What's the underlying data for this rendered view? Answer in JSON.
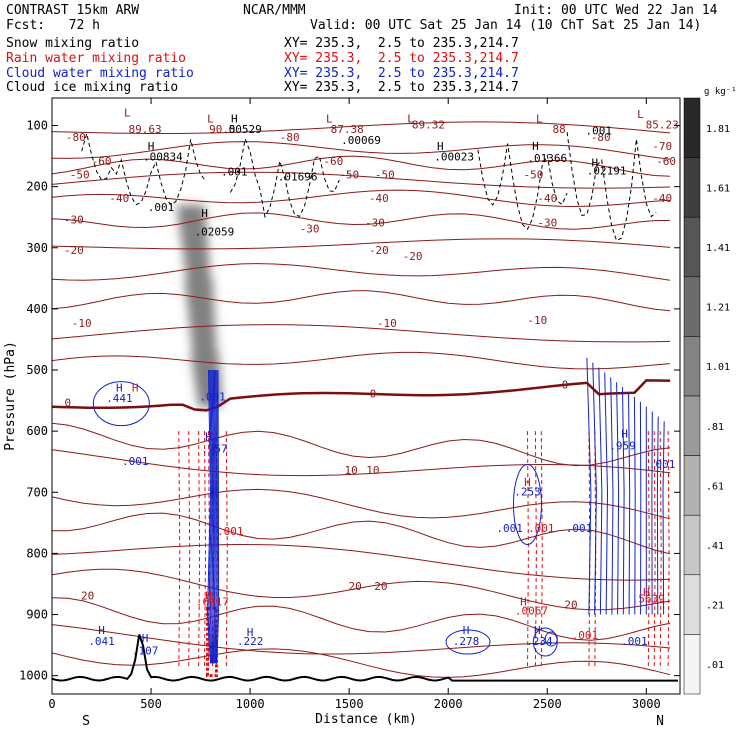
{
  "header": {
    "model": "CONTRAST 15km ARW",
    "fcst": "Fcst:   72 h",
    "center": "NCAR/MMM",
    "init": "Init: 00 UTC Wed 22 Jan 14",
    "valid": "Valid: 00 UTC Sat 25 Jan 14 (10 ChT Sat 25 Jan 14)"
  },
  "legend": [
    {
      "name": "Snow mixing ratio",
      "xy": "XY= 235.3,  2.5 to 235.3,214.7",
      "color": "#000000"
    },
    {
      "name": "Rain water mixing ratio",
      "xy": "XY= 235.3,  2.5 to 235.3,214.7",
      "color": "#dd1111"
    },
    {
      "name": "Cloud water mixing ratio",
      "xy": "XY= 235.3,  2.5 to 235.3,214.7",
      "color": "#1122cc"
    },
    {
      "name": "Cloud ice mixing ratio",
      "xy": "XY= 235.3,  2.5 to 235.3,214.7",
      "color": "#000000"
    }
  ],
  "chart_data": {
    "type": "contour",
    "xlabel": "Distance (km)",
    "ylabel": "Pressure (hPa)",
    "xlim": [
      0,
      3170
    ],
    "ylim": [
      1030,
      55
    ],
    "xticks": [
      0,
      500,
      1000,
      1500,
      2000,
      2500,
      3000
    ],
    "yticks": [
      100,
      200,
      300,
      400,
      500,
      600,
      700,
      800,
      900,
      1000
    ],
    "end_labels": {
      "left": "S",
      "right": "N"
    },
    "colorbar": {
      "unit": "g kg⁻¹",
      "ticks": [
        "1.81",
        "1.61",
        "1.41",
        "1.21",
        "1.01",
        ".81",
        ".61",
        ".41",
        ".21",
        ".01"
      ]
    },
    "snow_plume": [
      {
        "x": 700,
        "p": 230
      },
      {
        "x": 740,
        "p": 350
      },
      {
        "x": 770,
        "p": 470
      },
      {
        "x": 800,
        "p": 560
      }
    ],
    "temperature_labels": [
      {
        "text": "-80",
        "x": 120,
        "p": 125
      },
      {
        "text": "-80",
        "x": 1200,
        "p": 125
      },
      {
        "text": "-80",
        "x": 2770,
        "p": 125
      },
      {
        "text": "-70",
        "x": 3080,
        "p": 140
      },
      {
        "text": "-60",
        "x": 250,
        "p": 165
      },
      {
        "text": "-60",
        "x": 1420,
        "p": 165
      },
      {
        "text": "-60",
        "x": 3100,
        "p": 165
      },
      {
        "text": "-50",
        "x": 140,
        "p": 187
      },
      {
        "text": "-50",
        "x": 1500,
        "p": 187
      },
      {
        "text": "-50",
        "x": 1680,
        "p": 187
      },
      {
        "text": "-50",
        "x": 2430,
        "p": 187
      },
      {
        "text": "-40",
        "x": 340,
        "p": 225
      },
      {
        "text": "-40",
        "x": 1650,
        "p": 225
      },
      {
        "text": "-40",
        "x": 2500,
        "p": 225
      },
      {
        "text": "-40",
        "x": 3080,
        "p": 225
      },
      {
        "text": "-30",
        "x": 110,
        "p": 260
      },
      {
        "text": "-30",
        "x": 1300,
        "p": 275
      },
      {
        "text": "-30",
        "x": 1630,
        "p": 265
      },
      {
        "text": "-30",
        "x": 2500,
        "p": 265
      },
      {
        "text": "-20",
        "x": 110,
        "p": 310
      },
      {
        "text": "-20",
        "x": 1650,
        "p": 310
      },
      {
        "text": "-20",
        "x": 1820,
        "p": 320
      },
      {
        "text": "-10",
        "x": 150,
        "p": 430
      },
      {
        "text": "-10",
        "x": 1690,
        "p": 430
      },
      {
        "text": "-10",
        "x": 2450,
        "p": 425
      },
      {
        "text": "0",
        "x": 80,
        "p": 560
      },
      {
        "text": "0",
        "x": 1620,
        "p": 545
      },
      {
        "text": "0",
        "x": 2590,
        "p": 530
      },
      {
        "text": "10",
        "x": 1510,
        "p": 670
      },
      {
        "text": "10",
        "x": 1620,
        "p": 670
      },
      {
        "text": "20",
        "x": 180,
        "p": 875
      },
      {
        "text": "20",
        "x": 1530,
        "p": 860
      },
      {
        "text": "20",
        "x": 1660,
        "p": 860
      },
      {
        "text": "20",
        "x": 2620,
        "p": 890
      }
    ],
    "annotations": [
      {
        "text": "L",
        "x": 380,
        "p": 85,
        "color": "#8b1a1a"
      },
      {
        "text": "89.63",
        "x": 470,
        "p": 112,
        "color": "#8b1a1a"
      },
      {
        "text": "L",
        "x": 800,
        "p": 95,
        "color": "#8b1a1a"
      },
      {
        "text": "H",
        "x": 920,
        "p": 95,
        "color": "#000000"
      },
      {
        "text": "90.5",
        "x": 860,
        "p": 112,
        "color": "#8b1a1a"
      },
      {
        "text": "00529",
        "x": 975,
        "p": 112,
        "color": "#000000"
      },
      {
        "text": "L",
        "x": 1400,
        "p": 95,
        "color": "#8b1a1a"
      },
      {
        "text": "87.38",
        "x": 1490,
        "p": 112,
        "color": "#8b1a1a"
      },
      {
        "text": ".00069",
        "x": 1560,
        "p": 130,
        "color": "#000000"
      },
      {
        "text": "L",
        "x": 1810,
        "p": 95,
        "color": "#8b1a1a"
      },
      {
        "text": "89.32",
        "x": 1900,
        "p": 105,
        "color": "#8b1a1a"
      },
      {
        "text": "L",
        "x": 2460,
        "p": 95,
        "color": "#8b1a1a"
      },
      {
        "text": "88",
        "x": 2560,
        "p": 112,
        "color": "#8b1a1a"
      },
      {
        "text": ".001",
        "x": 2760,
        "p": 115,
        "color": "#000000"
      },
      {
        "text": "L",
        "x": 2970,
        "p": 88,
        "color": "#8b1a1a"
      },
      {
        "text": "85.23",
        "x": 3080,
        "p": 105,
        "color": "#8b1a1a"
      },
      {
        "text": "H",
        "x": 500,
        "p": 140,
        "color": "#000000"
      },
      {
        "text": ".00834",
        "x": 560,
        "p": 157,
        "color": "#000000"
      },
      {
        "text": "H",
        "x": 1960,
        "p": 140,
        "color": "#000000"
      },
      {
        "text": ".00023",
        "x": 2030,
        "p": 157,
        "color": "#000000"
      },
      {
        "text": "H",
        "x": 2440,
        "p": 140,
        "color": "#000000"
      },
      {
        "text": ".01366",
        "x": 2500,
        "p": 160,
        "color": "#000000"
      },
      {
        "text": "H",
        "x": 2740,
        "p": 167,
        "color": "#000000"
      },
      {
        "text": ".02191",
        "x": 2800,
        "p": 180,
        "color": "#000000"
      },
      {
        "text": ".001",
        "x": 920,
        "p": 182,
        "color": "#000000"
      },
      {
        "text": ".01696",
        "x": 1240,
        "p": 190,
        "color": "#000000"
      },
      {
        "text": ".001",
        "x": 550,
        "p": 240,
        "color": "#000000"
      },
      {
        "text": "H",
        "x": 770,
        "p": 250,
        "color": "#000000"
      },
      {
        "text": ".02059",
        "x": 820,
        "p": 280,
        "color": "#000000"
      },
      {
        "text": "H",
        "x": 340,
        "p": 535,
        "color": "#1122cc"
      },
      {
        "text": ".441",
        "x": 340,
        "p": 552,
        "color": "#1122cc"
      },
      {
        "text": "H",
        "x": 420,
        "p": 535,
        "color": "#dd1111"
      },
      {
        "text": ".001",
        "x": 810,
        "p": 550,
        "color": "#1122cc"
      },
      {
        "text": "H",
        "x": 790,
        "p": 615,
        "color": "#1122cc"
      },
      {
        "text": ".757",
        "x": 820,
        "p": 635,
        "color": "#1122cc"
      },
      {
        "text": ".001",
        "x": 420,
        "p": 655,
        "color": "#1122cc"
      },
      {
        "text": ".001",
        "x": 900,
        "p": 770,
        "color": "#dd1111"
      },
      {
        "text": "H",
        "x": 790,
        "p": 875,
        "color": "#dd1111"
      },
      {
        "text": ".6917",
        "x": 810,
        "p": 885,
        "color": "#dd1111"
      },
      {
        "text": "H",
        "x": 2890,
        "p": 610,
        "color": "#1122cc"
      },
      {
        "text": ".959",
        "x": 2880,
        "p": 630,
        "color": "#1122cc"
      },
      {
        "text": ".001",
        "x": 3080,
        "p": 660,
        "color": "#1122cc"
      },
      {
        "text": "H",
        "x": 2400,
        "p": 690,
        "color": "#dd1111"
      },
      {
        "text": ".253",
        "x": 2400,
        "p": 705,
        "color": "#1122cc"
      },
      {
        "text": ".001",
        "x": 2310,
        "p": 765,
        "color": "#1122cc"
      },
      {
        "text": ".001",
        "x": 2470,
        "p": 765,
        "color": "#dd1111"
      },
      {
        "text": ".001",
        "x": 2660,
        "p": 765,
        "color": "#1122cc"
      },
      {
        "text": "H",
        "x": 3000,
        "p": 870,
        "color": "#dd1111"
      },
      {
        "text": ".5639",
        "x": 3010,
        "p": 880,
        "color": "#dd1111"
      },
      {
        "text": "H",
        "x": 2380,
        "p": 885,
        "color": "#dd1111"
      },
      {
        "text": ".0067",
        "x": 2420,
        "p": 900,
        "color": "#dd1111"
      },
      {
        "text": "H",
        "x": 250,
        "p": 932,
        "color": "#1122cc"
      },
      {
        "text": ".041",
        "x": 250,
        "p": 950,
        "color": "#1122cc"
      },
      {
        "text": "H",
        "x": 470,
        "p": 945,
        "color": "#1122cc"
      },
      {
        "text": ".107",
        "x": 470,
        "p": 965,
        "color": "#1122cc"
      },
      {
        "text": "H",
        "x": 1000,
        "p": 935,
        "color": "#1122cc"
      },
      {
        "text": ".222",
        "x": 1000,
        "p": 950,
        "color": "#1122cc"
      },
      {
        "text": "H",
        "x": 2090,
        "p": 932,
        "color": "#1122cc"
      },
      {
        "text": ".278",
        "x": 2090,
        "p": 950,
        "color": "#1122cc"
      },
      {
        "text": "H",
        "x": 2450,
        "p": 932,
        "color": "#1122cc"
      },
      {
        "text": ".234",
        "x": 2460,
        "p": 950,
        "color": "#1122cc"
      },
      {
        "text": ".001",
        "x": 2690,
        "p": 940,
        "color": "#dd1111"
      },
      {
        "text": ".001",
        "x": 2940,
        "p": 950,
        "color": "#1122cc"
      }
    ]
  }
}
